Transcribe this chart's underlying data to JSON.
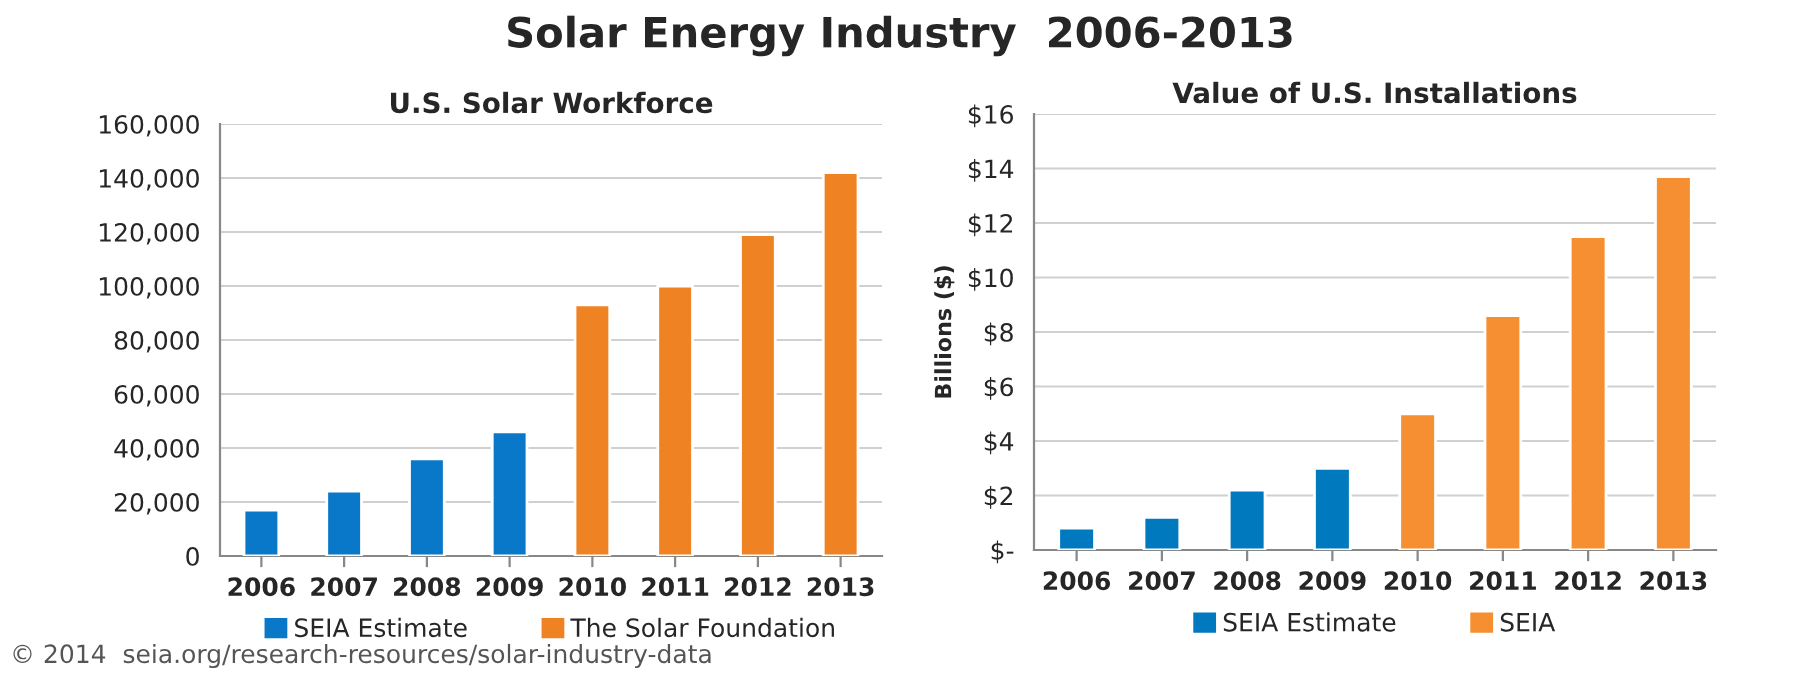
{
  "chart_data": [
    {
      "type": "bar",
      "title": "U.S. Solar Workforce",
      "categories": [
        "2006",
        "2007",
        "2008",
        "2009",
        "2010",
        "2011",
        "2012",
        "2013"
      ],
      "series": [
        {
          "name": "SEIA Estimate",
          "color": "#0a78c8",
          "values": [
            17000,
            24000,
            36000,
            46000,
            null,
            null,
            null,
            null
          ]
        },
        {
          "name": "The Solar Foundation",
          "color": "#ef8323",
          "values": [
            null,
            null,
            null,
            null,
            93000,
            100000,
            119000,
            142000
          ]
        }
      ],
      "ylim": [
        0,
        160000
      ],
      "yticks": [
        0,
        {
          "value": 20000,
          "label": "20,000"
        },
        {
          "value": 40000,
          "label": "40,000"
        },
        {
          "value": 60000,
          "label": "60,000"
        },
        {
          "value": 80000,
          "label": "80,000"
        },
        {
          "value": 100000,
          "label": "100,000"
        },
        {
          "value": 120000,
          "label": "120,000"
        },
        {
          "value": 140000,
          "label": "140,000"
        },
        {
          "value": 160000,
          "label": "160,000"
        }
      ],
      "grid": "y",
      "legend": "bottom",
      "annotations": [
        "Solar Energy Industry  2006-2013",
        "© 2014  seia.org/research-resources/solar-industry-data"
      ]
    },
    {
      "type": "bar",
      "title": "Value of U.S. Installations",
      "ylabel": "Billions ($)",
      "categories": [
        "2006",
        "2007",
        "2008",
        "2009",
        "2010",
        "2011",
        "2012",
        "2013"
      ],
      "series": [
        {
          "name": "SEIA Estimate",
          "color": "#0079bf",
          "values": [
            0.8,
            1.2,
            2.2,
            3.0,
            null,
            null,
            null,
            null
          ]
        },
        {
          "name": "SEIA",
          "color": "#f68f31",
          "values": [
            null,
            null,
            null,
            null,
            5.0,
            8.6,
            11.5,
            13.7
          ]
        }
      ],
      "ylim": [
        0,
        16
      ],
      "yticks": [
        {
          "value": 0,
          "label": "$-"
        },
        {
          "value": 2,
          "label": "$2"
        },
        {
          "value": 4,
          "label": "$4"
        },
        {
          "value": 6,
          "label": "$6"
        },
        {
          "value": 8,
          "label": "$8"
        },
        {
          "value": 10,
          "label": "$10"
        },
        {
          "value": 12,
          "label": "$12"
        },
        {
          "value": 14,
          "label": "$14"
        },
        {
          "value": 16,
          "label": "$16"
        }
      ],
      "grid": "y",
      "legend": "bottom"
    }
  ]
}
